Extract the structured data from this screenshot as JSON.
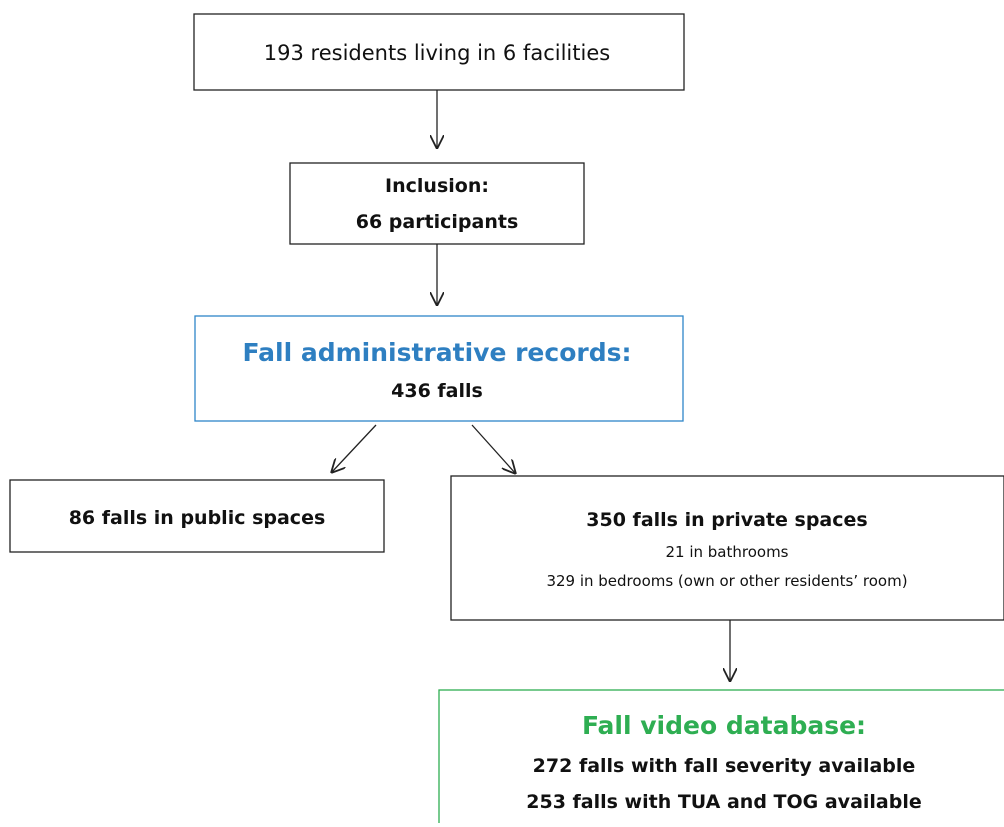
{
  "nodes": [
    {
      "lines": [
        "193 residents living in 6 facilities"
      ]
    },
    {
      "lines": [
        "Inclusion:",
        "66 participants"
      ]
    },
    {
      "lines": [
        "Fall administrative records:",
        "436 falls"
      ]
    },
    {
      "lines": [
        "86 falls in public spaces"
      ]
    },
    {
      "lines": [
        "350 falls in private spaces",
        "21 in bathrooms",
        "329 in bedrooms (own or other residents’ room)"
      ]
    },
    {
      "lines": [
        "Fall video database:",
        "272 falls with fall severity available",
        "253 falls with TUA and TOG available"
      ]
    }
  ]
}
